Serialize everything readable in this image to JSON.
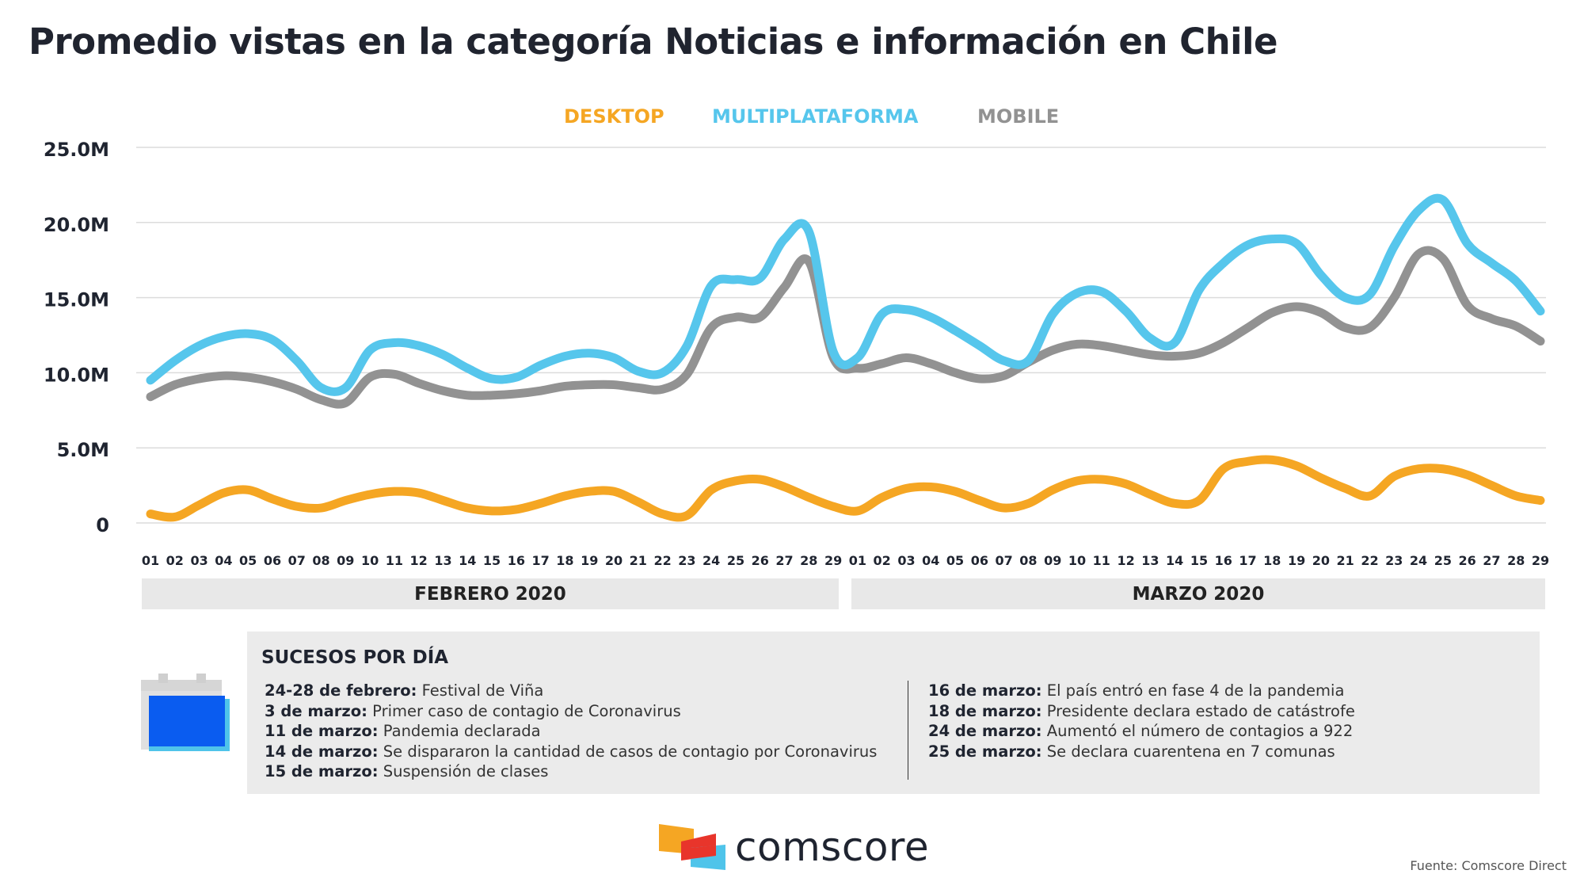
{
  "title": "Promedio vistas en la categoría Noticias e información en Chile",
  "legend": [
    {
      "label": "DESKTOP",
      "color": "#f5a623"
    },
    {
      "label": "MULTIPLATAFORMA",
      "color": "#56c6ec"
    },
    {
      "label": "MOBILE",
      "color": "#929292"
    }
  ],
  "chart_data": {
    "type": "line",
    "title": "Promedio vistas en la categoría Noticias e información en Chile",
    "yticks": [
      "25.0M",
      "20.0M",
      "15.0M",
      "10.0M",
      "5.0M",
      "0"
    ],
    "ylim": [
      0,
      25
    ],
    "y_unit": "M",
    "grid": true,
    "legend_position": "top-center",
    "x": [
      "01",
      "02",
      "03",
      "04",
      "05",
      "06",
      "07",
      "08",
      "09",
      "10",
      "11",
      "12",
      "13",
      "14",
      "15",
      "16",
      "17",
      "18",
      "19",
      "20",
      "21",
      "22",
      "23",
      "24",
      "25",
      "26",
      "27",
      "28",
      "29",
      "01",
      "02",
      "03",
      "04",
      "05",
      "06",
      "07",
      "08",
      "09",
      "10",
      "11",
      "12",
      "13",
      "14",
      "15",
      "16",
      "17",
      "18",
      "19",
      "20",
      "21",
      "22",
      "23",
      "24",
      "25",
      "26",
      "27",
      "28",
      "29"
    ],
    "months": [
      "FEBRERO 2020",
      "MARZO 2020"
    ],
    "series": [
      {
        "name": "DESKTOP",
        "color": "#f5a623",
        "values": [
          0.6,
          0.4,
          1.2,
          2.0,
          2.2,
          1.6,
          1.1,
          1.0,
          1.5,
          1.9,
          2.1,
          2.0,
          1.5,
          1.0,
          0.8,
          0.9,
          1.3,
          1.8,
          2.1,
          2.1,
          1.4,
          0.6,
          0.5,
          2.2,
          2.8,
          2.9,
          2.4,
          1.7,
          1.1,
          0.8,
          1.7,
          2.3,
          2.4,
          2.1,
          1.5,
          1.0,
          1.3,
          2.2,
          2.8,
          2.9,
          2.6,
          1.9,
          1.3,
          1.5,
          3.6,
          4.1,
          4.2,
          3.8,
          3.0,
          2.3,
          1.8,
          3.1,
          3.6,
          3.6,
          3.2,
          2.5,
          1.8,
          1.5
        ]
      },
      {
        "name": "MULTIPLATAFORMA",
        "color": "#56c6ec",
        "values": [
          9.5,
          10.8,
          11.8,
          12.4,
          12.6,
          12.2,
          10.8,
          9.0,
          9.0,
          11.5,
          12.0,
          11.8,
          11.2,
          10.3,
          9.6,
          9.7,
          10.5,
          11.1,
          11.3,
          11.0,
          10.1,
          10.0,
          11.8,
          15.8,
          16.2,
          16.3,
          18.9,
          19.4,
          11.4,
          11.0,
          13.9,
          14.2,
          13.7,
          12.8,
          11.8,
          10.8,
          10.8,
          13.9,
          15.3,
          15.4,
          14.1,
          12.3,
          12.0,
          15.5,
          17.3,
          18.5,
          18.9,
          18.6,
          16.5,
          15.0,
          15.2,
          18.4,
          20.8,
          21.5,
          18.6,
          17.3,
          16.1,
          14.1
        ]
      },
      {
        "name": "MOBILE",
        "color": "#929292",
        "values": [
          8.4,
          9.2,
          9.6,
          9.8,
          9.7,
          9.4,
          8.9,
          8.2,
          8.0,
          9.7,
          9.9,
          9.3,
          8.8,
          8.5,
          8.5,
          8.6,
          8.8,
          9.1,
          9.2,
          9.2,
          9.0,
          8.9,
          9.9,
          13.0,
          13.7,
          13.7,
          15.7,
          17.4,
          11.0,
          10.3,
          10.6,
          11.0,
          10.6,
          10.0,
          9.6,
          9.8,
          10.7,
          11.5,
          11.9,
          11.8,
          11.5,
          11.2,
          11.1,
          11.3,
          12.0,
          13.0,
          14.0,
          14.4,
          14.0,
          13.0,
          13.0,
          15.0,
          17.9,
          17.6,
          14.5,
          13.6,
          13.1,
          12.1
        ]
      }
    ]
  },
  "events": {
    "title": "SUCESOS POR DÍA",
    "left": [
      {
        "date": "24-28 de febrero:",
        "text": " Festival de Viña"
      },
      {
        "date": "3 de marzo:",
        "text": " Primer caso de contagio de Coronavirus"
      },
      {
        "date": "11 de marzo:",
        "text": " Pandemia declarada"
      },
      {
        "date": "14 de marzo:",
        "text": " Se dispararon la cantidad de casos de contagio por Coronavirus"
      },
      {
        "date": "15 de marzo:",
        "text": " Suspensión de clases"
      }
    ],
    "right": [
      {
        "date": "16 de marzo:",
        "text": " El país entró en fase 4 de la pandemia"
      },
      {
        "date": "18 de marzo:",
        "text": " Presidente declara estado de catástrofe"
      },
      {
        "date": "24 de marzo:",
        "text": " Aumentó el número de contagios a 922"
      },
      {
        "date": "25 de marzo:",
        "text": " Se declara cuarentena en 7 comunas"
      }
    ]
  },
  "logo_text": "comscore",
  "source": "Fuente: Comscore Direct"
}
